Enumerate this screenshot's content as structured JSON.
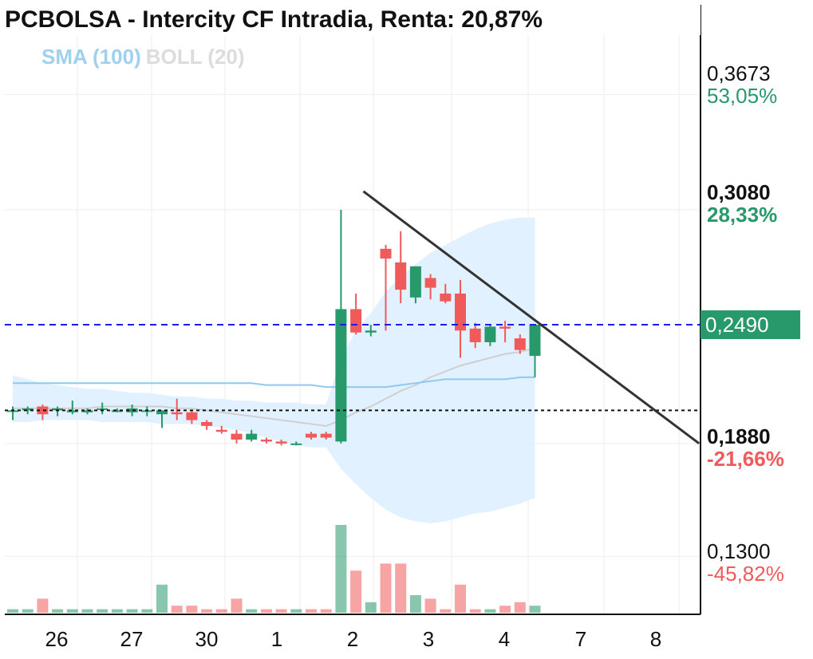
{
  "title": "PCBOLSA - Intercity CF Intradia, Renta: 20,87%",
  "indicators": {
    "sma": "SMA (100)",
    "boll": "BOLL (20)"
  },
  "colors": {
    "up": "#27996b",
    "down": "#f05a5a",
    "sma": "#8fc9ee",
    "boll_band": "#dcefff",
    "ref_line": "#111111",
    "last_line": "#1a1aff",
    "trendline": "#333333"
  },
  "y_axis": [
    {
      "price": "0,3673",
      "pct": "53,05%",
      "bold": false,
      "pct_color": "#27996b"
    },
    {
      "price": "0,3080",
      "pct": "28,33%",
      "bold": true,
      "pct_color": "#27996b"
    },
    {
      "price": "0,1880",
      "pct": "-21,66%",
      "bold": true,
      "pct_color": "#f05a5a"
    },
    {
      "price": "0,1300",
      "pct": "-45,82%",
      "bold": false,
      "pct_color": "#f05a5a"
    }
  ],
  "last_price": "0,2490",
  "x_axis": [
    "26",
    "27",
    "30",
    "1",
    "2",
    "3",
    "4",
    "7",
    "8"
  ],
  "chart_data": {
    "type": "candlestick",
    "title": "PCBOLSA - Intercity CF Intradia, Renta: 20,87%",
    "y_ticks": [
      0.3673,
      0.308,
      0.188,
      0.13
    ],
    "x_ticks": [
      "26",
      "27",
      "30",
      "1",
      "2",
      "3",
      "4",
      "7",
      "8"
    ],
    "reference_price": 0.205,
    "last_price": 0.249,
    "ylim": [
      0.13,
      0.3673
    ],
    "candles": [
      {
        "o": 0.205,
        "h": 0.207,
        "l": 0.2,
        "c": 0.205
      },
      {
        "o": 0.205,
        "h": 0.207,
        "l": 0.203,
        "c": 0.206
      },
      {
        "o": 0.207,
        "h": 0.208,
        "l": 0.2,
        "c": 0.203
      },
      {
        "o": 0.205,
        "h": 0.207,
        "l": 0.202,
        "c": 0.206
      },
      {
        "o": 0.204,
        "h": 0.21,
        "l": 0.203,
        "c": 0.205
      },
      {
        "o": 0.204,
        "h": 0.206,
        "l": 0.203,
        "c": 0.205
      },
      {
        "o": 0.206,
        "h": 0.209,
        "l": 0.203,
        "c": 0.206
      },
      {
        "o": 0.205,
        "h": 0.206,
        "l": 0.204,
        "c": 0.205
      },
      {
        "o": 0.204,
        "h": 0.208,
        "l": 0.202,
        "c": 0.206
      },
      {
        "o": 0.205,
        "h": 0.207,
        "l": 0.202,
        "c": 0.205
      },
      {
        "o": 0.203,
        "h": 0.205,
        "l": 0.196,
        "c": 0.205
      },
      {
        "o": 0.204,
        "h": 0.211,
        "l": 0.2,
        "c": 0.203
      },
      {
        "o": 0.204,
        "h": 0.205,
        "l": 0.198,
        "c": 0.2
      },
      {
        "o": 0.199,
        "h": 0.2,
        "l": 0.195,
        "c": 0.197
      },
      {
        "o": 0.195,
        "h": 0.197,
        "l": 0.193,
        "c": 0.194
      },
      {
        "o": 0.193,
        "h": 0.195,
        "l": 0.188,
        "c": 0.19
      },
      {
        "o": 0.19,
        "h": 0.195,
        "l": 0.189,
        "c": 0.193
      },
      {
        "o": 0.19,
        "h": 0.191,
        "l": 0.188,
        "c": 0.189
      },
      {
        "o": 0.189,
        "h": 0.19,
        "l": 0.187,
        "c": 0.188
      },
      {
        "o": 0.188,
        "h": 0.189,
        "l": 0.187,
        "c": 0.188
      },
      {
        "o": 0.193,
        "h": 0.194,
        "l": 0.19,
        "c": 0.191
      },
      {
        "o": 0.193,
        "h": 0.194,
        "l": 0.19,
        "c": 0.191
      },
      {
        "o": 0.189,
        "h": 0.308,
        "l": 0.188,
        "c": 0.257
      },
      {
        "o": 0.257,
        "h": 0.265,
        "l": 0.244,
        "c": 0.245
      },
      {
        "o": 0.245,
        "h": 0.249,
        "l": 0.243,
        "c": 0.246
      },
      {
        "o": 0.288,
        "h": 0.29,
        "l": 0.246,
        "c": 0.283
      },
      {
        "o": 0.281,
        "h": 0.297,
        "l": 0.26,
        "c": 0.267
      },
      {
        "o": 0.263,
        "h": 0.279,
        "l": 0.26,
        "c": 0.279
      },
      {
        "o": 0.273,
        "h": 0.275,
        "l": 0.262,
        "c": 0.268
      },
      {
        "o": 0.265,
        "h": 0.27,
        "l": 0.26,
        "c": 0.261
      },
      {
        "o": 0.265,
        "h": 0.272,
        "l": 0.232,
        "c": 0.246
      },
      {
        "o": 0.247,
        "h": 0.25,
        "l": 0.237,
        "c": 0.24
      },
      {
        "o": 0.24,
        "h": 0.249,
        "l": 0.238,
        "c": 0.248
      },
      {
        "o": 0.248,
        "h": 0.251,
        "l": 0.24,
        "c": 0.247
      },
      {
        "o": 0.242,
        "h": 0.244,
        "l": 0.234,
        "c": 0.236
      },
      {
        "o": 0.233,
        "h": 0.248,
        "l": 0.222,
        "c": 0.249
      }
    ],
    "volumes": [
      1,
      1,
      4,
      1,
      1,
      1,
      1,
      1,
      1,
      1,
      8,
      2,
      2,
      1,
      1,
      4,
      1,
      1,
      1,
      1,
      1,
      1,
      25,
      12,
      3,
      14,
      14,
      5,
      4,
      1,
      8,
      1,
      1,
      2,
      3,
      2
    ],
    "sma_100": [
      0.219,
      0.219,
      0.219,
      0.219,
      0.219,
      0.219,
      0.219,
      0.219,
      0.219,
      0.219,
      0.219,
      0.219,
      0.219,
      0.219,
      0.219,
      0.219,
      0.219,
      0.218,
      0.218,
      0.218,
      0.218,
      0.217,
      0.217,
      0.217,
      0.217,
      0.217,
      0.218,
      0.219,
      0.22,
      0.221,
      0.221,
      0.221,
      0.221,
      0.221,
      0.222,
      0.222
    ],
    "boll_mid": [
      0.206,
      0.206,
      0.206,
      0.206,
      0.206,
      0.206,
      0.207,
      0.207,
      0.207,
      0.207,
      0.207,
      0.206,
      0.206,
      0.205,
      0.204,
      0.203,
      0.202,
      0.201,
      0.2,
      0.199,
      0.198,
      0.197,
      0.2,
      0.204,
      0.207,
      0.211,
      0.215,
      0.218,
      0.222,
      0.225,
      0.228,
      0.23,
      0.232,
      0.234,
      0.235,
      0.237
    ],
    "boll_upper": [
      0.223,
      0.221,
      0.219,
      0.218,
      0.217,
      0.216,
      0.216,
      0.215,
      0.214,
      0.214,
      0.213,
      0.212,
      0.212,
      0.211,
      0.211,
      0.21,
      0.21,
      0.209,
      0.209,
      0.209,
      0.208,
      0.208,
      0.232,
      0.246,
      0.255,
      0.266,
      0.274,
      0.28,
      0.286,
      0.29,
      0.294,
      0.298,
      0.301,
      0.303,
      0.304,
      0.304
    ],
    "boll_lower": [
      0.199,
      0.199,
      0.2,
      0.2,
      0.2,
      0.2,
      0.199,
      0.199,
      0.199,
      0.199,
      0.198,
      0.198,
      0.198,
      0.197,
      0.196,
      0.195,
      0.193,
      0.191,
      0.189,
      0.187,
      0.186,
      0.186,
      0.175,
      0.167,
      0.16,
      0.154,
      0.15,
      0.148,
      0.147,
      0.148,
      0.15,
      0.152,
      0.153,
      0.155,
      0.157,
      0.16
    ],
    "trendline": [
      {
        "i": 23.5,
        "v": 0.3175
      },
      {
        "i": 46.0,
        "v": 0.188
      }
    ]
  }
}
